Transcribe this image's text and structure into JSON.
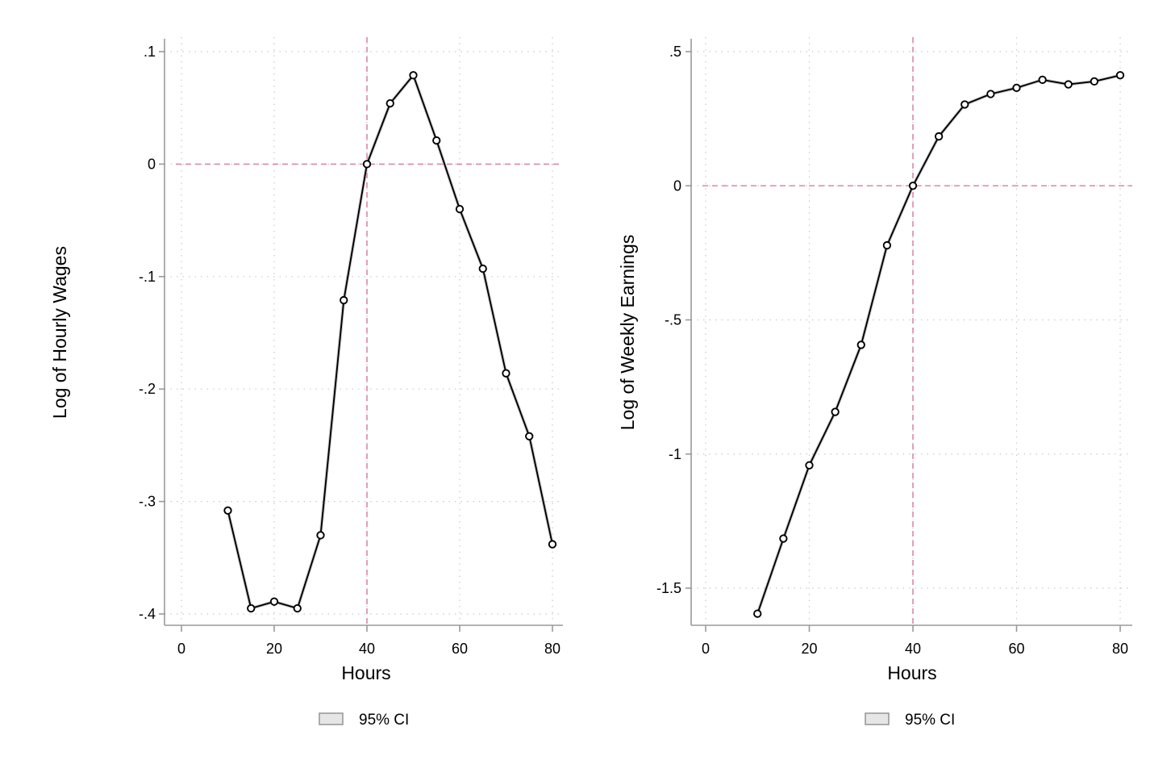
{
  "chart_data": [
    {
      "type": "line",
      "xlabel": "Hours",
      "ylabel": "Log of Hourly Wages",
      "xlim": [
        0,
        80
      ],
      "ylim": [
        -0.4,
        0.1
      ],
      "xticks": [
        0,
        20,
        40,
        60,
        80
      ],
      "xtick_labels": [
        "0",
        "20",
        "40",
        "60",
        "80"
      ],
      "yticks": [
        0.1,
        0,
        -0.1,
        -0.2,
        -0.3,
        -0.4
      ],
      "ytick_labels": [
        ".1",
        "0",
        "-.1",
        "-.2",
        "-.3",
        "-.4"
      ],
      "grid": true,
      "reference_lines": {
        "x": 40,
        "y": 0,
        "color": "#d98aa3"
      },
      "legend": {
        "label": "95% CI",
        "placement": "bottom-center"
      },
      "series": [
        {
          "x": [
            10,
            15,
            20,
            25,
            30,
            35,
            40,
            45,
            50,
            55,
            60,
            65,
            70,
            75,
            80
          ],
          "y": [
            -0.308,
            -0.395,
            -0.389,
            -0.395,
            -0.33,
            -0.121,
            0.0,
            0.054,
            0.079,
            0.021,
            -0.04,
            -0.093,
            -0.186,
            -0.242,
            -0.338
          ]
        }
      ]
    },
    {
      "type": "line",
      "xlabel": "Hours",
      "ylabel": "Log of Weekly Earnings",
      "xlim": [
        0,
        80
      ],
      "ylim": [
        -1.5,
        0.5
      ],
      "xticks": [
        0,
        20,
        40,
        60,
        80
      ],
      "xtick_labels": [
        "0",
        "20",
        "40",
        "60",
        "80"
      ],
      "yticks": [
        0.5,
        0,
        -0.5,
        -1,
        -1.5
      ],
      "ytick_labels": [
        ".5",
        "0",
        "-.5",
        "-1",
        "-1.5"
      ],
      "grid": true,
      "reference_lines": {
        "x": 40,
        "y": 0,
        "color": "#d98aa3"
      },
      "legend": {
        "label": "95% CI",
        "placement": "bottom-center"
      },
      "series": [
        {
          "x": [
            10,
            15,
            20,
            25,
            30,
            35,
            40,
            45,
            50,
            55,
            60,
            65,
            70,
            75,
            80
          ],
          "y": [
            -1.595,
            -1.315,
            -1.042,
            -0.843,
            -0.593,
            -0.222,
            0.0,
            0.184,
            0.303,
            0.342,
            0.365,
            0.395,
            0.378,
            0.389,
            0.412
          ]
        }
      ]
    }
  ]
}
